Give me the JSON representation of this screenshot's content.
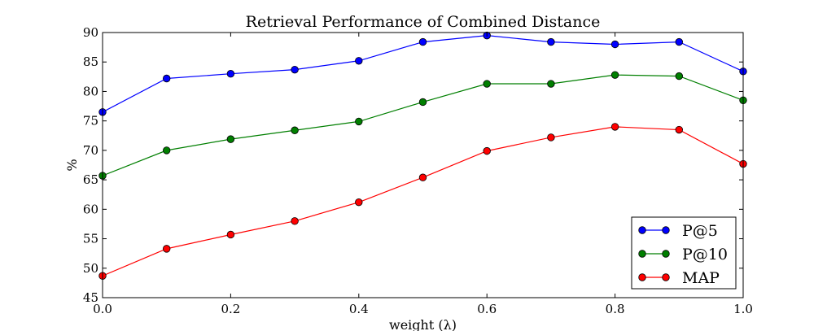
{
  "chart_data": {
    "type": "line",
    "title": "Retrieval Performance of Combined Distance",
    "xlabel": "weight (λ)",
    "ylabel": "%",
    "xlim": [
      0.0,
      1.0
    ],
    "ylim": [
      45,
      90
    ],
    "xticks": [
      0.0,
      0.2,
      0.4,
      0.6,
      0.8,
      1.0
    ],
    "xtick_labels": [
      "0.0",
      "0.2",
      "0.4",
      "0.6",
      "0.8",
      "1.0"
    ],
    "yticks": [
      45,
      50,
      55,
      60,
      65,
      70,
      75,
      80,
      85,
      90
    ],
    "ytick_labels": [
      "45",
      "50",
      "55",
      "60",
      "65",
      "70",
      "75",
      "80",
      "85",
      "90"
    ],
    "grid": false,
    "legend_position": "bottom-right",
    "x": [
      0.0,
      0.1,
      0.2,
      0.3,
      0.4,
      0.5,
      0.6,
      0.7,
      0.8,
      0.9,
      1.0
    ],
    "series": [
      {
        "name": "P@5",
        "color": "#0000ff",
        "values": [
          76.5,
          82.2,
          83.0,
          83.7,
          85.2,
          88.4,
          89.5,
          88.4,
          88.0,
          88.4,
          83.4
        ]
      },
      {
        "name": "P@10",
        "color": "#007f00",
        "values": [
          65.7,
          70.0,
          71.9,
          73.4,
          74.9,
          78.2,
          81.3,
          81.3,
          82.8,
          82.6,
          78.5
        ]
      },
      {
        "name": "MAP",
        "color": "#ff0000",
        "values": [
          48.7,
          53.3,
          55.7,
          58.0,
          61.2,
          65.4,
          69.9,
          72.2,
          74.0,
          73.5,
          67.7
        ]
      }
    ]
  }
}
